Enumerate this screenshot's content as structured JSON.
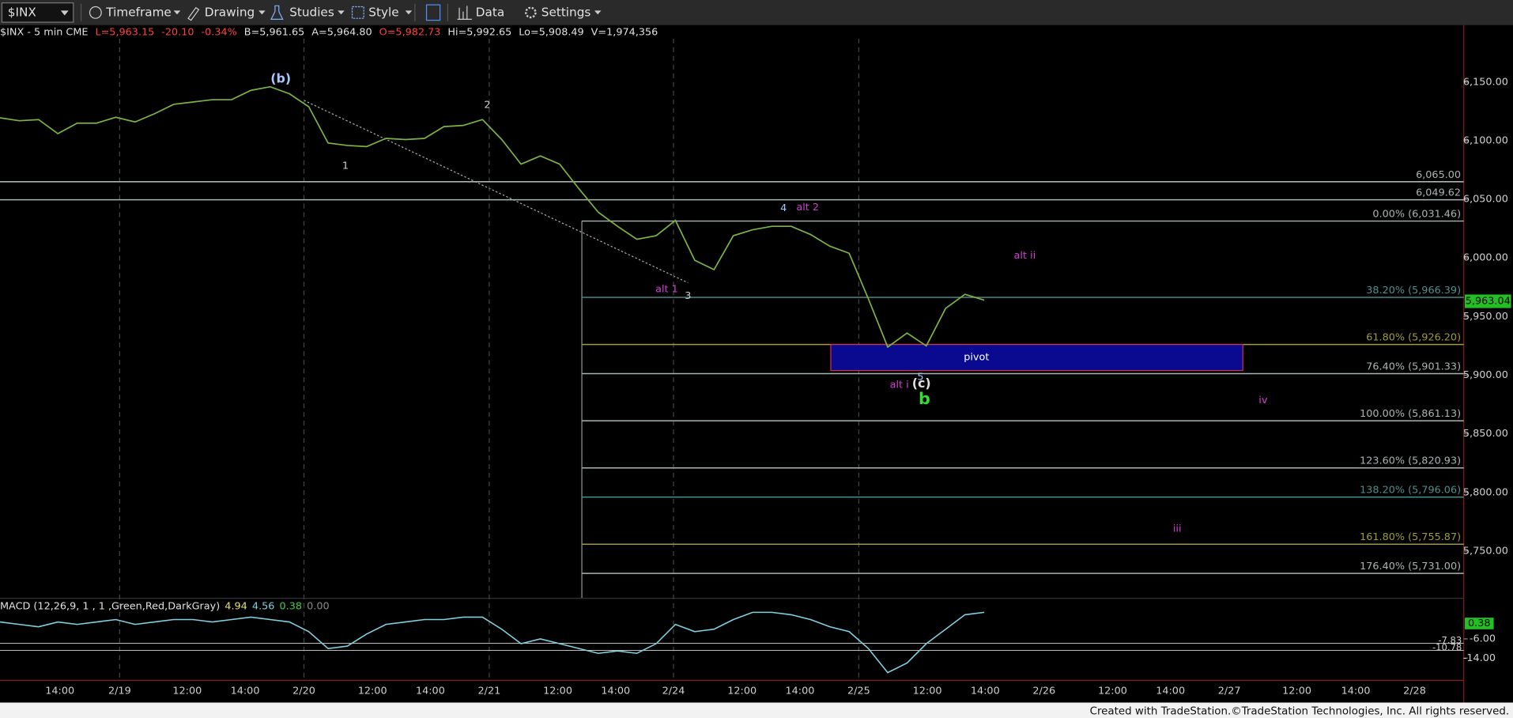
{
  "toolbar": {
    "symbol": "$INX",
    "items": [
      "Timeframe",
      "Drawing",
      "Studies",
      "Style",
      "Data",
      "Settings"
    ]
  },
  "quote": {
    "symbol": "$INX - 5 min CME",
    "last": "L=5,963.15",
    "change": "-20.10",
    "percent": "-0.34%",
    "bid": "B=5,961.65",
    "ask": "A=5,964.80",
    "open": "O=5,982.73",
    "high": "Hi=5,992.65",
    "low": "Lo=5,908.49",
    "volume": "V=1,974,356"
  },
  "chart_data": [
    {
      "type": "line",
      "color": "#7cb342",
      "values": [
        6119.5,
        6117,
        6118,
        6106,
        6115,
        6115,
        6120,
        6116,
        6123,
        6131,
        6133,
        6135,
        6135,
        6143,
        6146,
        6140,
        6129,
        6098,
        6096,
        6095,
        6102,
        6101,
        6102,
        6112,
        6113,
        6118,
        6101,
        6080,
        6087,
        6080,
        6059,
        6039,
        6027,
        6016,
        6019,
        6032,
        5998,
        5990,
        6019,
        6024,
        6027,
        6027,
        6020,
        6010,
        6004,
        5965,
        5924,
        5936,
        5925,
        5957,
        5969,
        5964
      ],
      "ylim": [
        5709.7,
        6198.6
      ],
      "yticks": [
        {
          "value": 5750,
          "label": "5,750.00"
        },
        {
          "value": 5800,
          "label": "5,800.00"
        },
        {
          "value": 5850,
          "label": "5,850.00"
        },
        {
          "value": 5900,
          "label": "5,900.00"
        },
        {
          "value": 5950,
          "label": "5,950.00"
        },
        {
          "value": 6000,
          "label": "6,000.00"
        },
        {
          "value": 6050,
          "label": "6,050.00"
        },
        {
          "value": 6100,
          "label": "6,100.00"
        },
        {
          "value": 6150,
          "label": "6,150.00"
        }
      ],
      "x_axis_labels": [
        "14:00",
        "2/19",
        "12:00",
        "14:00",
        "2/20",
        "12:00",
        "14:00",
        "2/21",
        "12:00",
        "14:00",
        "2/24",
        "12:00",
        "14:00",
        "2/25",
        "12:00",
        "14:00",
        "2/26",
        "12:00",
        "14:00",
        "2/27",
        "12:00",
        "14:00",
        "2/28"
      ],
      "last_price": {
        "value": 5963.04,
        "label": "5,963.04"
      },
      "horizontal_levels": [
        {
          "value": 6065,
          "label": "6,065.00",
          "color": "#aab4b4"
        },
        {
          "value": 6049.62,
          "label": "6,049.62",
          "color": "#aab4b4"
        }
      ],
      "fib_levels": [
        {
          "value": 6031.46,
          "label": "0.00% (6,031.46)",
          "color": "#aab4b4"
        },
        {
          "value": 5966.39,
          "label": "38.20% (5,966.39)",
          "color": "#4f8f8f"
        },
        {
          "value": 5926.2,
          "label": "61.80% (5,926.20)",
          "color": "#a09a3a"
        },
        {
          "value": 5901.33,
          "label": "76.40% (5,901.33)",
          "color": "#aab4b4"
        },
        {
          "value": 5861.13,
          "label": "100.00% (5,861.13)",
          "color": "#aab4b4"
        },
        {
          "value": 5820.93,
          "label": "123.60% (5,820.93)",
          "color": "#aab4b4"
        },
        {
          "value": 5796.06,
          "label": "138.20% (5,796.06)",
          "color": "#4f8f8f"
        },
        {
          "value": 5755.87,
          "label": "161.80% (5,755.87)",
          "color": "#a09a3a"
        },
        {
          "value": 5731,
          "label": "176.40% (5,731.00)",
          "color": "#aab4b4"
        }
      ],
      "pivot_zone": {
        "label": "pivot",
        "top": 5926.2,
        "bottom": 5904
      },
      "annotations": [
        {
          "text": "(b)",
          "color": "#a8c8ff"
        },
        {
          "text": "1",
          "color": "#d0d0d0"
        },
        {
          "text": "2",
          "color": "#d0d0d0"
        },
        {
          "text": "alt 1",
          "color": "#d040d0"
        },
        {
          "text": "3",
          "color": "#d0d0d0"
        },
        {
          "text": "4",
          "color": "#a8c8ff"
        },
        {
          "text": "alt 2",
          "color": "#d040d0"
        },
        {
          "text": "alt ii",
          "color": "#d040d0"
        },
        {
          "text": "5",
          "color": "#a8c8ff"
        },
        {
          "text": "alt i",
          "color": "#d040d0"
        },
        {
          "text": "(c)",
          "color": "#e0e0e0"
        },
        {
          "text": "b",
          "color": "#33dd33"
        },
        {
          "text": "iv",
          "color": "#d040d0"
        },
        {
          "text": "iii",
          "color": "#d040d0"
        }
      ]
    },
    {
      "type": "line",
      "title": "MACD (12,26,9, 1 , 1 ,Green,Red,DarkGray)",
      "readings": [
        {
          "text": "4.94",
          "color": "#e8e060"
        },
        {
          "text": "4.56",
          "color": "#7fd0e0"
        },
        {
          "text": "0.38",
          "color": "#40d040"
        },
        {
          "text": "0.00",
          "color": "#888888"
        }
      ],
      "color": "#7fd0e0",
      "values": [
        1,
        0,
        -1,
        1,
        0,
        1,
        2,
        0,
        1,
        2,
        2,
        1,
        2,
        3,
        2,
        1,
        -3,
        -10,
        -9,
        -4,
        0,
        1,
        2,
        2,
        3,
        3,
        -2,
        -8,
        -6,
        -8,
        -10,
        -12,
        -11,
        -12,
        -8,
        0,
        -3,
        -2,
        2,
        5,
        5,
        4,
        2,
        -1,
        -3,
        -10,
        -20,
        -16,
        -8,
        -2,
        4,
        5
      ],
      "ylim": [
        -23.2,
        10.8
      ],
      "yticks": [
        {
          "value": -6,
          "label": "-6.00"
        },
        {
          "value": -14,
          "label": "-14.00"
        }
      ],
      "last_value": {
        "value": 0.38,
        "label": "0.38"
      },
      "levels": [
        {
          "value": -7.83,
          "label": "-7.83"
        },
        {
          "value": -10.78,
          "label": "-10.78"
        }
      ]
    }
  ],
  "footer": "Created with TradeStation.©TradeStation Technologies, Inc. All rights reserved."
}
